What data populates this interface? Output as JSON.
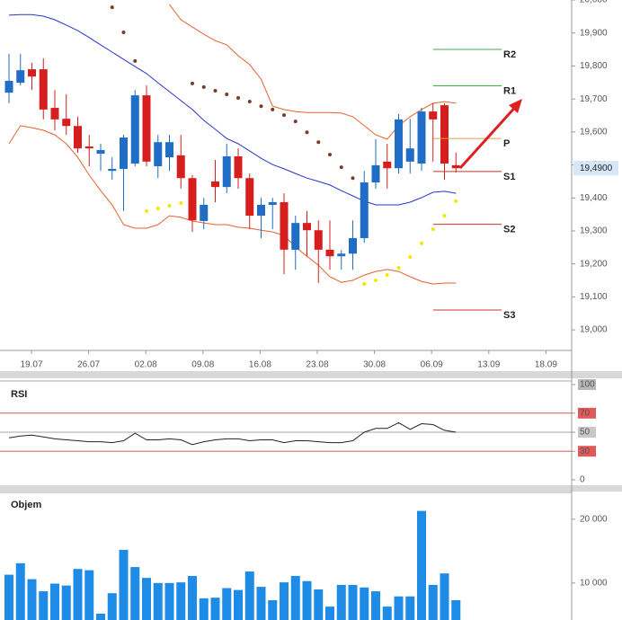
{
  "chart_data": [
    {
      "type": "candlestick",
      "xtick_labels": [
        "19.07",
        "26.07",
        "02.08",
        "09.08",
        "16.08",
        "23.08",
        "30.08",
        "06.09",
        "13.09",
        "18.09"
      ],
      "open": [
        19719,
        19749,
        19790,
        19790,
        19673,
        19640,
        19618,
        19556,
        19534,
        19482,
        19488,
        19504,
        19711,
        19496,
        19523,
        19529,
        19460,
        19330,
        19450,
        19433,
        19526,
        19460,
        19346,
        19379,
        19387,
        19243,
        19324,
        19302,
        19243,
        19223,
        19231,
        19278,
        19447,
        19510,
        19490,
        19510,
        19504,
        19662,
        19681,
        19499
      ],
      "high": [
        19837,
        19837,
        19809,
        19823,
        19727,
        19714,
        19646,
        19591,
        19564,
        19523,
        19591,
        19727,
        19741,
        19591,
        19591,
        19591,
        19469,
        19400,
        19515,
        19564,
        19550,
        19474,
        19400,
        19400,
        19414,
        19346,
        19360,
        19332,
        19332,
        19242,
        19332,
        19482,
        19578,
        19564,
        19654,
        19640,
        19673,
        19687,
        19687,
        19537
      ],
      "low": [
        19687,
        19741,
        19727,
        19638,
        19605,
        19591,
        19537,
        19496,
        19482,
        19455,
        19360,
        19496,
        19496,
        19460,
        19482,
        19428,
        19297,
        19305,
        19387,
        19414,
        19428,
        19305,
        19278,
        19305,
        19169,
        19182,
        19223,
        19142,
        19182,
        19182,
        19182,
        19264,
        19428,
        19428,
        19474,
        19474,
        19482,
        19510,
        19455,
        19477
      ],
      "close": [
        19755,
        19787,
        19768,
        19668,
        19638,
        19618,
        19550,
        19550,
        19545,
        19488,
        19583,
        19711,
        19510,
        19569,
        19569,
        19460,
        19332,
        19379,
        19433,
        19526,
        19460,
        19346,
        19379,
        19387,
        19243,
        19324,
        19302,
        19243,
        19223,
        19231,
        19278,
        19447,
        19499,
        19490,
        19638,
        19550,
        19662,
        19638,
        19504,
        19490
      ],
      "up_color": "#1f6dc4",
      "down_color": "#d61e1e",
      "overlays": [
        {
          "color": "#e8602c",
          "values": [
            null,
            null,
            null,
            null,
            null,
            null,
            null,
            null,
            null,
            null,
            null,
            null,
            null,
            null,
            19986,
            19940,
            19918,
            19896,
            19877,
            19864,
            19831,
            19804,
            19760,
            19678,
            19668,
            19662,
            19659,
            19659,
            19659,
            19657,
            19646,
            19619,
            19591,
            19578,
            19619,
            19646,
            19668,
            19687,
            19692,
            19687
          ]
        },
        {
          "color": "#e8602c",
          "values": [
            19564,
            19619,
            19613,
            19605,
            19591,
            19564,
            19523,
            19469,
            19422,
            19379,
            19319,
            19308,
            19308,
            19319,
            19346,
            19341,
            19330,
            19324,
            19319,
            19319,
            19311,
            19308,
            19302,
            19297,
            19286,
            19251,
            19223,
            19196,
            19161,
            19144,
            19150,
            19166,
            19177,
            19183,
            19177,
            19161,
            19147,
            19139,
            19142,
            19142
          ]
        },
        {
          "color": "#2b35c8",
          "values": [
            19954,
            19956,
            19956,
            19951,
            19940,
            19924,
            19907,
            19886,
            19864,
            19842,
            19820,
            19798,
            19777,
            19749,
            19722,
            19695,
            19668,
            19635,
            19608,
            19580,
            19564,
            19542,
            19520,
            19501,
            19488,
            19474,
            19460,
            19450,
            19439,
            19422,
            19406,
            19390,
            19379,
            19379,
            19379,
            19387,
            19401,
            19417,
            19420,
            19414
          ]
        }
      ],
      "sar": [
        {
          "color": "#7b3a2a",
          "values": [
            null,
            null,
            null,
            null,
            null,
            null,
            null,
            null,
            null,
            19978,
            19902,
            19815,
            null,
            null,
            null,
            null,
            19747,
            19736,
            19725,
            19714,
            19703,
            19692,
            19678,
            19668,
            19651,
            19632,
            19599,
            19569,
            19531,
            19493,
            19460,
            null,
            null,
            null,
            null,
            null,
            null,
            null,
            null,
            null
          ]
        },
        {
          "color": "#f2e600",
          "values": [
            null,
            null,
            null,
            null,
            null,
            null,
            null,
            null,
            null,
            null,
            null,
            null,
            19360,
            19368,
            19376,
            19384,
            null,
            null,
            null,
            null,
            null,
            null,
            null,
            null,
            null,
            null,
            null,
            null,
            null,
            null,
            null,
            19139,
            19150,
            19166,
            19188,
            19221,
            19262,
            19305,
            19346,
            19390
          ]
        }
      ],
      "levels": [
        {
          "label": "R2",
          "value": 19850,
          "color": "#3cb043"
        },
        {
          "label": "R1",
          "value": 19740,
          "color": "#3cb043"
        },
        {
          "label": "P",
          "value": 19580,
          "color": "#e0a040"
        },
        {
          "label": "S1",
          "value": 19480,
          "color": "#c0392b"
        },
        {
          "label": "S2",
          "value": 19320,
          "color": "#c0392b"
        },
        {
          "label": "S3",
          "value": 19060,
          "color": "#c0392b"
        }
      ],
      "last_price": {
        "value": 19490,
        "label": "19,4900"
      },
      "ylim": [
        18943,
        20000
      ],
      "yticks": [
        {
          "value": 20000,
          "label": "20,000"
        },
        {
          "value": 19900,
          "label": "19,900"
        },
        {
          "value": 19800,
          "label": "19,800"
        },
        {
          "value": 19700,
          "label": "19,700"
        },
        {
          "value": 19600,
          "label": "19,600"
        },
        {
          "value": 19500,
          "label": "19,500"
        },
        {
          "value": 19400,
          "label": "19,400"
        },
        {
          "value": 19300,
          "label": "19,300"
        },
        {
          "value": 19200,
          "label": "19,200"
        },
        {
          "value": 19100,
          "label": "19,100"
        },
        {
          "value": 19000,
          "label": "19,000"
        }
      ]
    },
    {
      "type": "line",
      "title": "RSI",
      "color": "#222",
      "values": [
        44,
        46,
        47,
        45,
        43,
        42,
        41,
        40,
        40,
        39,
        41,
        49,
        42,
        42,
        43,
        42,
        37,
        40,
        42,
        43,
        43,
        41,
        42,
        42,
        39,
        41,
        41,
        40,
        39,
        39,
        41,
        50,
        54,
        54,
        60,
        53,
        59,
        58,
        52,
        50
      ],
      "ylim": [
        -5.7,
        103.8
      ],
      "yticks": [
        100,
        70,
        50,
        30,
        0
      ],
      "tick_colors": [
        "#b8b8b8",
        "#e05a5a",
        "#c8c8c8",
        "#e05a5a",
        null
      ],
      "level_lines": [
        {
          "value": 70,
          "color": "#d04040"
        },
        {
          "value": 50,
          "color": "#888888"
        },
        {
          "value": 30,
          "color": "#d04040"
        }
      ]
    },
    {
      "type": "bar",
      "title": "Objem",
      "color": "#1e8ce6",
      "values": [
        11300,
        13100,
        10600,
        8700,
        9900,
        9600,
        12200,
        12000,
        5200,
        8400,
        15200,
        12500,
        10800,
        10000,
        10000,
        10100,
        11100,
        7600,
        7700,
        9200,
        8900,
        11800,
        9400,
        7300,
        10100,
        11100,
        10300,
        9000,
        6300,
        9700,
        9700,
        9300,
        8700,
        6300,
        7900,
        7900,
        21300,
        9700,
        11500,
        7300
      ],
      "ylim": [
        4200,
        24200
      ],
      "yticks": [
        {
          "value": 20000,
          "label": "20 000"
        },
        {
          "value": 10000,
          "label": "10 000"
        }
      ]
    }
  ]
}
